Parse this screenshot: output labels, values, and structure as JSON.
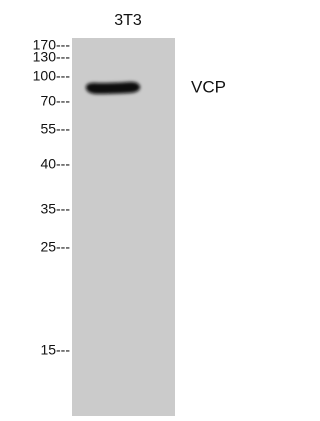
{
  "lane_label": "3T3",
  "markers": [
    "170---",
    "130---",
    "100---",
    "70---",
    "55---",
    "40---",
    "35---",
    "25---",
    "15---"
  ],
  "band_label": "VCP"
}
